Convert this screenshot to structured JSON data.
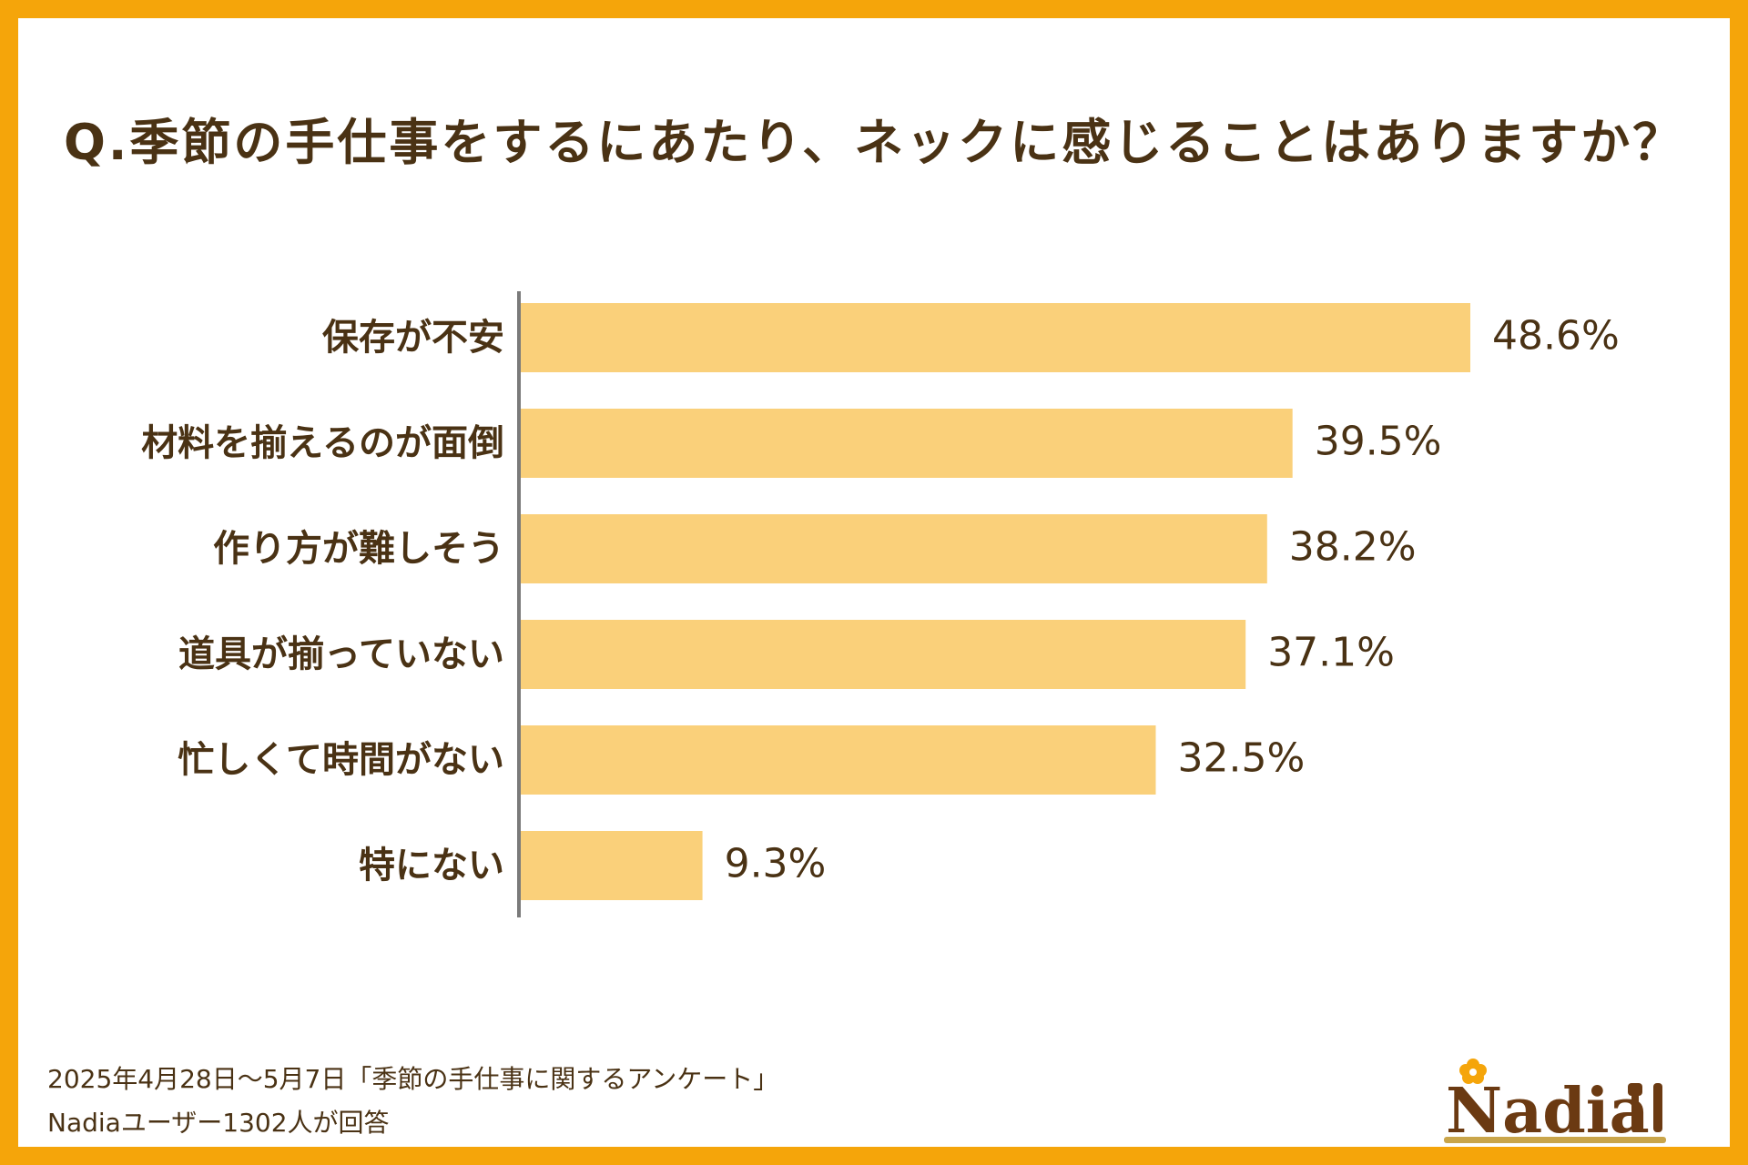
{
  "title": "Q.季節の手仕事をするにあたり、ネックに感じることはありますか？",
  "chart_data": {
    "type": "bar",
    "orientation": "horizontal",
    "categories": [
      "保存が不安",
      "材料を揃えるのが面倒",
      "作り方が難しそう",
      "道具が揃っていない",
      "忙しくて時間がない",
      "特にない"
    ],
    "values": [
      48.6,
      39.5,
      38.2,
      37.1,
      32.5,
      9.3
    ],
    "value_labels": [
      "48.6%",
      "39.5%",
      "38.2%",
      "37.1%",
      "32.5%",
      "9.3%"
    ],
    "unit": "%",
    "xlim": [
      0,
      100
    ],
    "grid": false,
    "title": "Q.季節の手仕事をするにあたり、ネックに感じることはありますか？"
  },
  "colors": {
    "border": "#F5A50A",
    "background": "#FFFFFF",
    "bar": "#FAD07A",
    "axis": "#7A7A7A",
    "text": "#4A3214",
    "logo_brown": "#6B3A12",
    "logo_gold": "#C9A54A",
    "logo_flower": "#F5A50A"
  },
  "footer": {
    "line1": "2025年4月28日～5月7日「季節の手仕事に関するアンケート」",
    "line2": "Nadiaユーザー1302人が回答"
  },
  "logo": {
    "text": "Nadia"
  }
}
